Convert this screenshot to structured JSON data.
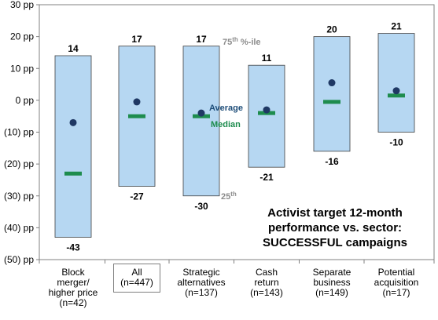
{
  "chart_data": {
    "type": "box",
    "title_lines": [
      "Activist target 12-month",
      "performance vs. sector:",
      "SUCCESSFUL campaigns"
    ],
    "ylim": [
      -50,
      30
    ],
    "yticks": [
      30,
      20,
      10,
      0,
      -10,
      -20,
      -30,
      -40,
      -50
    ],
    "ytick_labels": [
      "30 pp",
      "20 pp",
      "10 pp",
      "0 pp",
      "(10) pp",
      "(20) pp",
      "(30) pp",
      "(40) pp",
      "(50) pp"
    ],
    "categories": [
      {
        "lines": [
          "Block",
          "merger/",
          "higher price",
          "(n=42)"
        ],
        "p75": 14,
        "p25": -43,
        "average": -7,
        "median": -23,
        "p75_label": "14",
        "p25_label": "-43",
        "boxed": false
      },
      {
        "lines": [
          "All",
          "(n=447)"
        ],
        "p75": 17,
        "p25": -27,
        "average": -0.5,
        "median": -5,
        "p75_label": "17",
        "p25_label": "-27",
        "boxed": true
      },
      {
        "lines": [
          "Strategic",
          "alternatives",
          "(n=137)"
        ],
        "p75": 17,
        "p25": -30,
        "average": -4,
        "median": -5,
        "p75_label": "17",
        "p25_label": "-30",
        "boxed": false
      },
      {
        "lines": [
          "Cash",
          "return",
          "(n=143)"
        ],
        "p75": 11,
        "p25": -21,
        "average": -3,
        "median": -4,
        "p75_label": "11",
        "p25_label": "-21",
        "boxed": false
      },
      {
        "lines": [
          "Separate",
          "business",
          "(n=149)"
        ],
        "p75": 20,
        "p25": -16,
        "average": 5.5,
        "median": -0.5,
        "p75_label": "20",
        "p25_label": "-16",
        "boxed": false
      },
      {
        "lines": [
          "Potential",
          "acquisition",
          "(n=17)"
        ],
        "p75": 21,
        "p25": -10,
        "average": 3,
        "median": 1.5,
        "p75_label": "21",
        "p25_label": "-10",
        "boxed": false
      }
    ],
    "annotations": {
      "p75": {
        "base": "75",
        "sup": "th",
        "rest": " %-ile"
      },
      "p25": {
        "base": "25",
        "sup": "th"
      },
      "average": "Average",
      "median": "Median"
    },
    "colors": {
      "box_fill": "#b6d7f2",
      "box_stroke": "#404040",
      "average_marker": "#1f3864",
      "median_marker": "#1e8c4e",
      "average_text": "#1f4e79",
      "median_text": "#1e8c4e",
      "percentile_text": "#8c8c8c"
    }
  }
}
